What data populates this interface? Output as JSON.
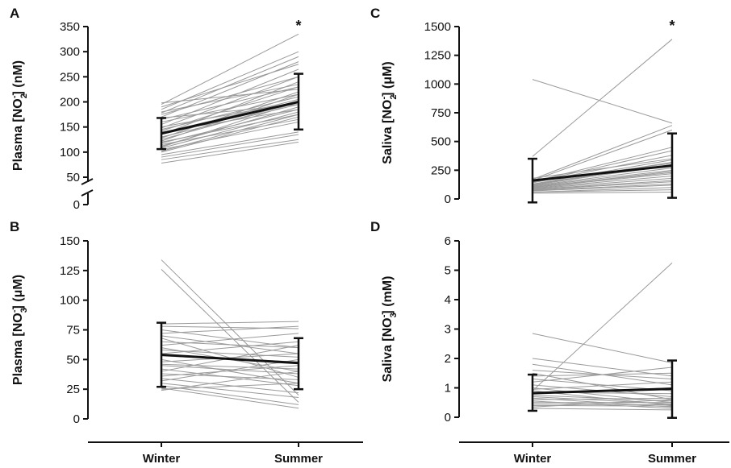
{
  "x_categories": [
    "Winter",
    "Summer"
  ],
  "chart_data": [
    {
      "type": "line",
      "panel_letter": "A",
      "ylabel_parts": [
        "Plasma [NO",
        "2",
        "-",
        "] (nM)"
      ],
      "y_ticks": [
        0,
        50,
        100,
        150,
        200,
        250,
        300,
        350
      ],
      "axis_break": {
        "below": 50,
        "break_value": 0
      },
      "ylim": [
        0,
        350
      ],
      "significance": "*",
      "mean": {
        "winter": 137,
        "summer": 200
      },
      "error": {
        "winter": [
          106,
          168
        ],
        "summer": [
          145,
          256
        ]
      },
      "pairs": [
        [
          78,
          120
        ],
        [
          85,
          125
        ],
        [
          90,
          135
        ],
        [
          95,
          140
        ],
        [
          100,
          170
        ],
        [
          102,
          175
        ],
        [
          105,
          160
        ],
        [
          108,
          180
        ],
        [
          110,
          200
        ],
        [
          112,
          190
        ],
        [
          115,
          165
        ],
        [
          118,
          185
        ],
        [
          120,
          175
        ],
        [
          122,
          215
        ],
        [
          125,
          200
        ],
        [
          128,
          220
        ],
        [
          130,
          195
        ],
        [
          135,
          240
        ],
        [
          138,
          205
        ],
        [
          140,
          185
        ],
        [
          142,
          230
        ],
        [
          145,
          210
        ],
        [
          148,
          250
        ],
        [
          150,
          200
        ],
        [
          155,
          265
        ],
        [
          160,
          215
        ],
        [
          165,
          230
        ],
        [
          168,
          195
        ],
        [
          170,
          280
        ],
        [
          175,
          250
        ],
        [
          178,
          290
        ],
        [
          180,
          235
        ],
        [
          185,
          300
        ],
        [
          190,
          275
        ],
        [
          195,
          335
        ],
        [
          198,
          225
        ]
      ]
    },
    {
      "type": "line",
      "panel_letter": "C",
      "ylabel_parts": [
        "Saliva [NO",
        "2",
        "-",
        "] (μM)"
      ],
      "y_ticks": [
        0,
        250,
        500,
        750,
        1000,
        1250,
        1500
      ],
      "ylim": [
        0,
        1500
      ],
      "significance": "*",
      "mean": {
        "winter": 160,
        "summer": 290
      },
      "error": {
        "winter": [
          -30,
          350
        ],
        "summer": [
          10,
          570
        ]
      },
      "pairs": [
        [
          1040,
          660
        ],
        [
          370,
          1390
        ],
        [
          60,
          80
        ],
        [
          70,
          120
        ],
        [
          80,
          150
        ],
        [
          90,
          180
        ],
        [
          95,
          200
        ],
        [
          100,
          220
        ],
        [
          110,
          250
        ],
        [
          115,
          270
        ],
        [
          120,
          300
        ],
        [
          125,
          320
        ],
        [
          130,
          340
        ],
        [
          140,
          380
        ],
        [
          145,
          420
        ],
        [
          150,
          450
        ],
        [
          160,
          600
        ],
        [
          170,
          640
        ],
        [
          50,
          60
        ],
        [
          60,
          100
        ],
        [
          75,
          130
        ],
        [
          85,
          160
        ],
        [
          100,
          240
        ],
        [
          105,
          230
        ],
        [
          130,
          290
        ],
        [
          150,
          310
        ],
        [
          180,
          350
        ]
      ]
    },
    {
      "type": "line",
      "panel_letter": "B",
      "ylabel_parts": [
        "Plasma [NO",
        "3",
        "-",
        "] (μM)"
      ],
      "y_ticks": [
        0,
        25,
        50,
        75,
        100,
        125,
        150
      ],
      "ylim": [
        0,
        150
      ],
      "mean": {
        "winter": 54,
        "summer": 47
      },
      "error": {
        "winter": [
          27,
          81
        ],
        "summer": [
          25,
          68
        ]
      },
      "pairs": [
        [
          134,
          20
        ],
        [
          126,
          14
        ],
        [
          80,
          82
        ],
        [
          78,
          76
        ],
        [
          75,
          60
        ],
        [
          72,
          78
        ],
        [
          70,
          55
        ],
        [
          68,
          35
        ],
        [
          65,
          60
        ],
        [
          62,
          72
        ],
        [
          60,
          40
        ],
        [
          58,
          52
        ],
        [
          55,
          65
        ],
        [
          53,
          48
        ],
        [
          50,
          30
        ],
        [
          48,
          55
        ],
        [
          46,
          42
        ],
        [
          45,
          38
        ],
        [
          42,
          28
        ],
        [
          40,
          62
        ],
        [
          38,
          33
        ],
        [
          36,
          45
        ],
        [
          34,
          22
        ],
        [
          32,
          50
        ],
        [
          30,
          18
        ],
        [
          28,
          12
        ],
        [
          26,
          9
        ],
        [
          25,
          30
        ],
        [
          24,
          40
        ]
      ]
    },
    {
      "type": "line",
      "panel_letter": "D",
      "ylabel_parts": [
        "Saliva [NO",
        "3",
        "-",
        "] (mM)"
      ],
      "y_ticks": [
        0,
        1,
        2,
        3,
        4,
        5,
        6
      ],
      "ylim": [
        0,
        6
      ],
      "mean": {
        "winter": 0.82,
        "summer": 0.97
      },
      "error": {
        "winter": [
          0.22,
          1.45
        ],
        "summer": [
          -0.02,
          1.93
        ]
      },
      "pairs": [
        [
          2.85,
          1.85
        ],
        [
          0.9,
          5.25
        ],
        [
          2.0,
          1.4
        ],
        [
          1.8,
          1.1
        ],
        [
          1.6,
          1.3
        ],
        [
          1.5,
          0.6
        ],
        [
          1.4,
          1.5
        ],
        [
          1.3,
          0.9
        ],
        [
          1.2,
          1.7
        ],
        [
          1.1,
          0.7
        ],
        [
          1.0,
          0.5
        ],
        [
          0.95,
          1.2
        ],
        [
          0.9,
          0.4
        ],
        [
          0.85,
          0.8
        ],
        [
          0.8,
          1.0
        ],
        [
          0.75,
          0.55
        ],
        [
          0.7,
          0.45
        ],
        [
          0.65,
          0.35
        ],
        [
          0.6,
          0.65
        ],
        [
          0.55,
          0.3
        ],
        [
          0.5,
          0.5
        ],
        [
          0.45,
          0.42
        ],
        [
          0.4,
          0.38
        ],
        [
          0.35,
          0.6
        ],
        [
          0.3,
          0.25
        ]
      ]
    }
  ]
}
